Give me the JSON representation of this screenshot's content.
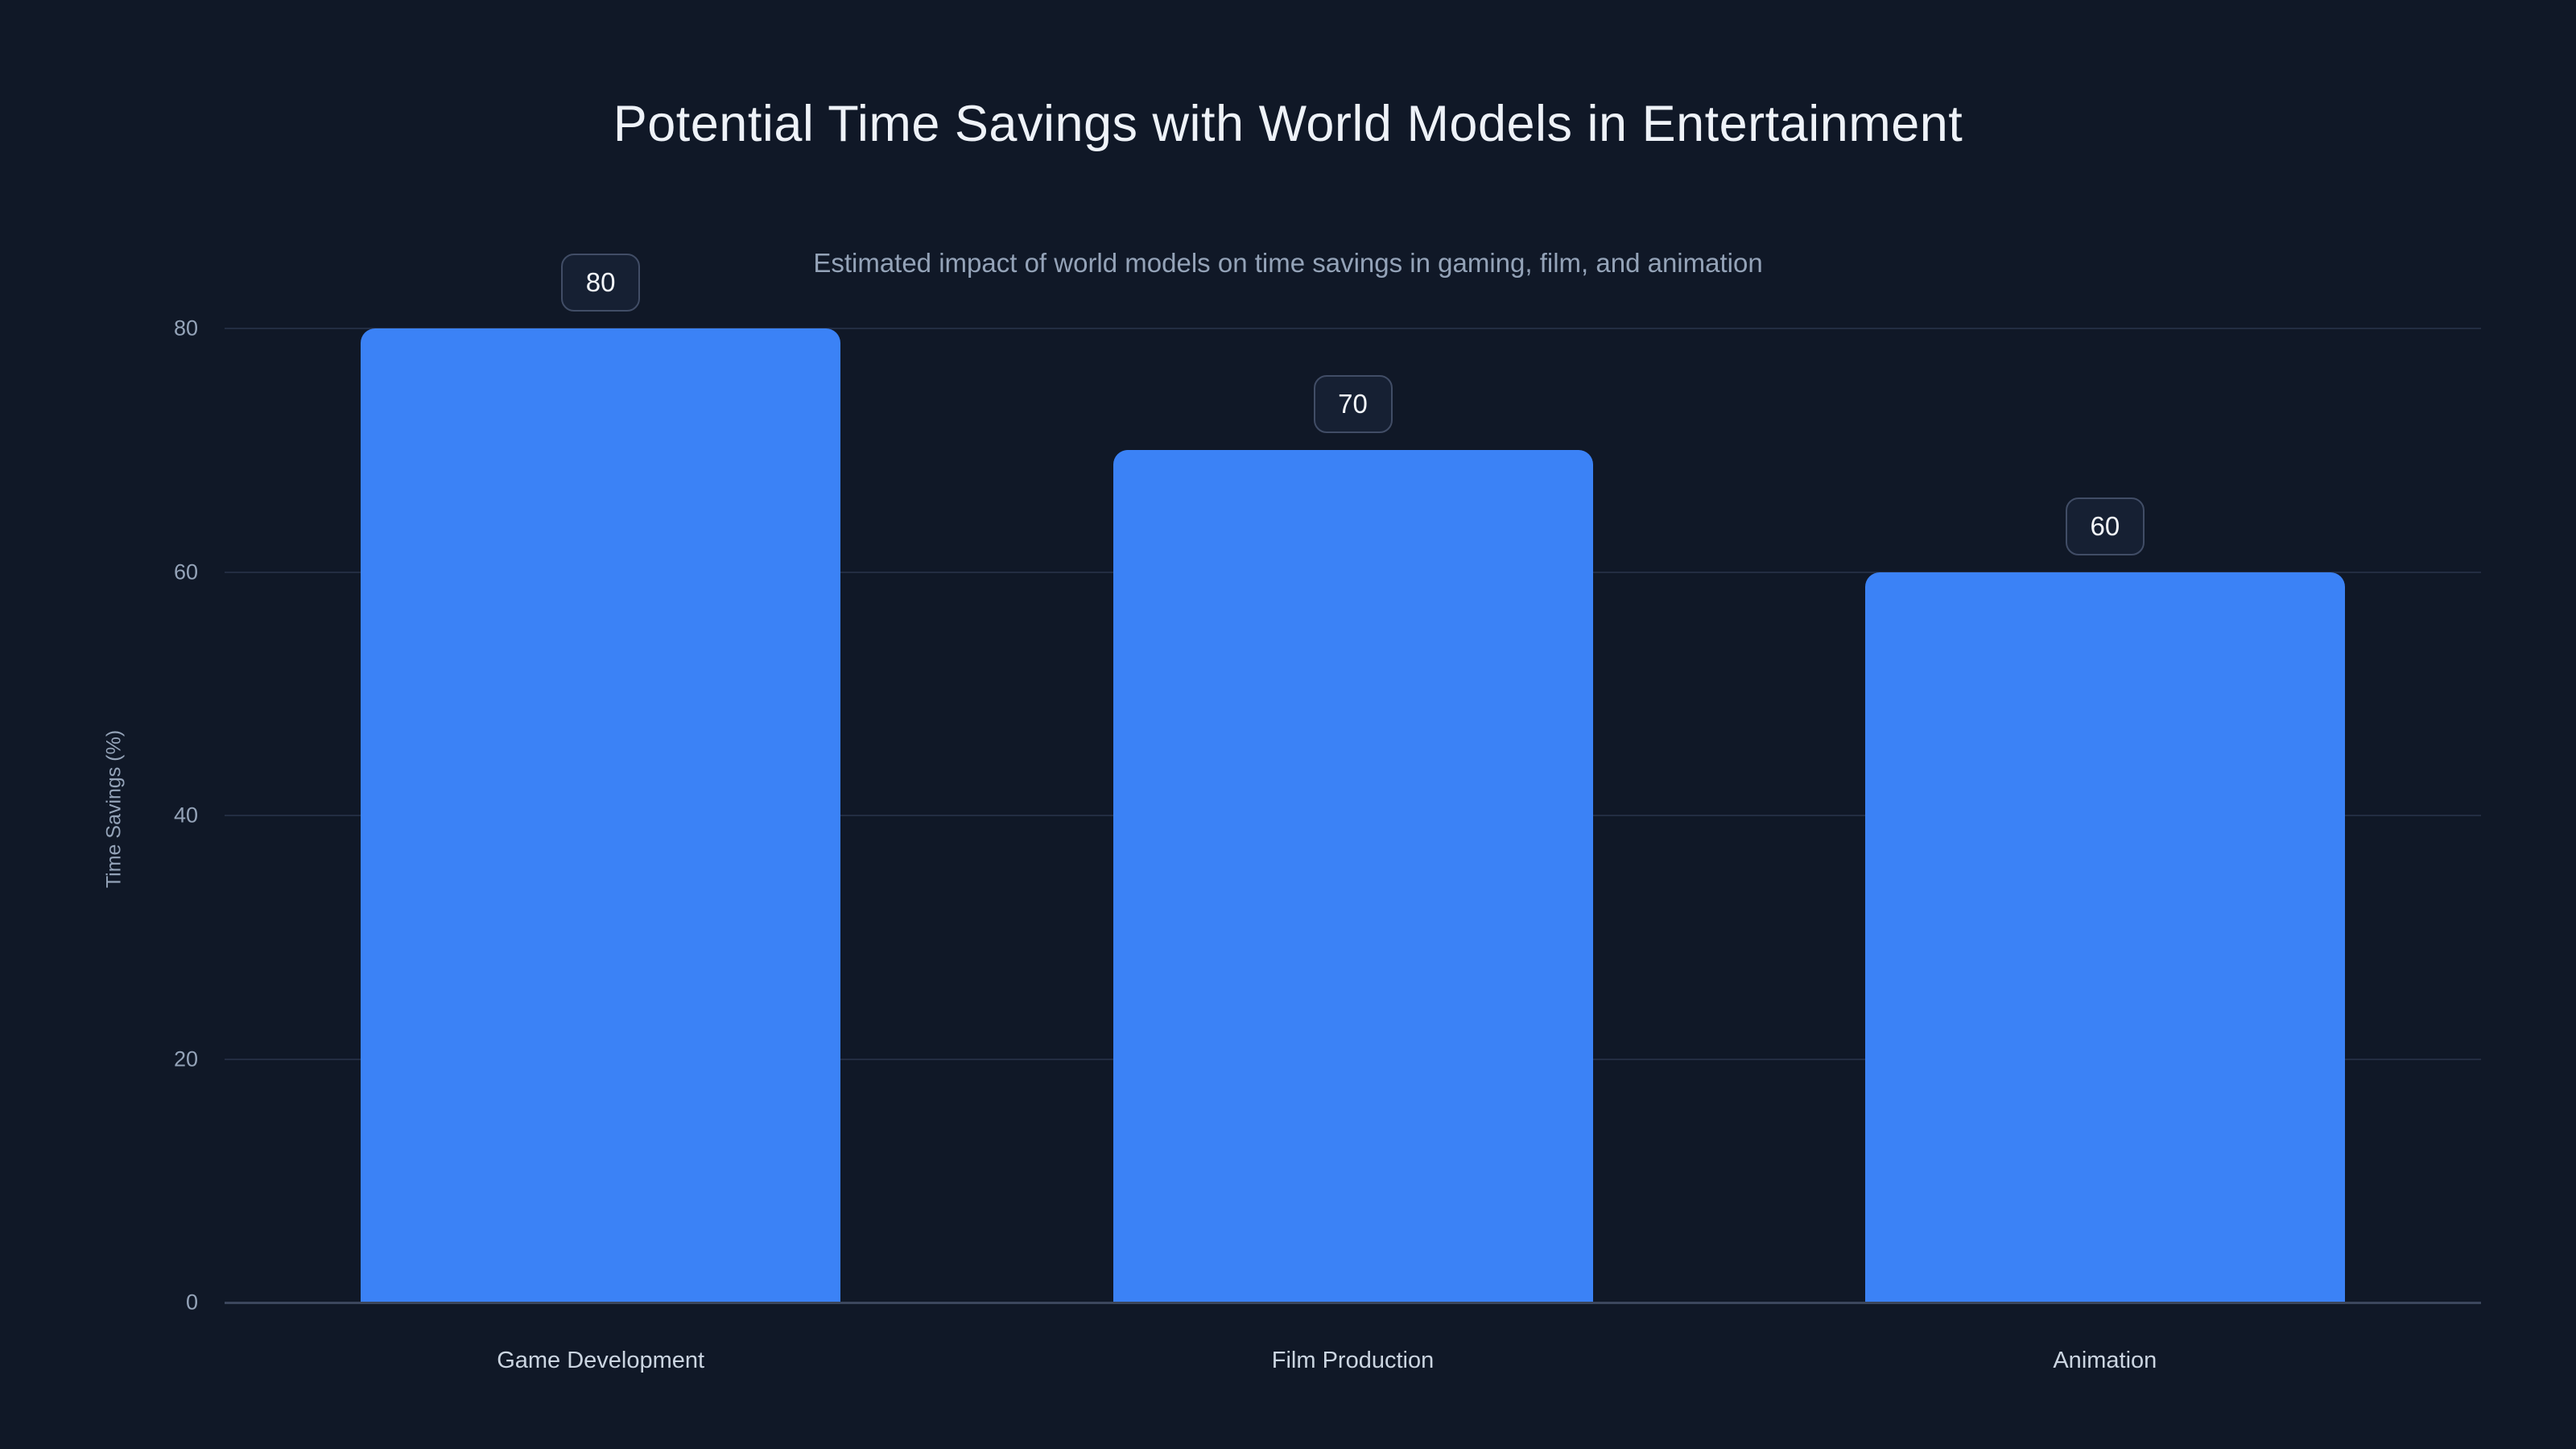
{
  "chart_data": {
    "type": "bar",
    "title": "Potential Time Savings with World Models in Entertainment",
    "subtitle": "Estimated impact of world models on time savings in gaming, film, and animation",
    "categories": [
      "Game Development",
      "Film Production",
      "Animation"
    ],
    "values": [
      80,
      70,
      60
    ],
    "value_labels": [
      "80",
      "70",
      "60"
    ],
    "xlabel": "",
    "ylabel": "Time Savings (%)",
    "yticks": [
      0,
      20,
      40,
      60,
      80
    ],
    "ylim": [
      0,
      80
    ],
    "grid": true,
    "legend": false,
    "data_label_style": "rounded-badge-above-bar",
    "colors": {
      "background": "#101827",
      "bar": "#3b82f6",
      "title_text": "#eef2f8",
      "subtitle_text": "#94a3b8",
      "tick_text": "#94a3b8",
      "category_text": "#cbd5e1",
      "axis_title_text": "#94a3b8",
      "gridline": "#232d42",
      "baseline": "#3c475d",
      "badge_background": "#162033",
      "badge_border": "#414d66",
      "badge_text": "#f4f7fb"
    }
  }
}
